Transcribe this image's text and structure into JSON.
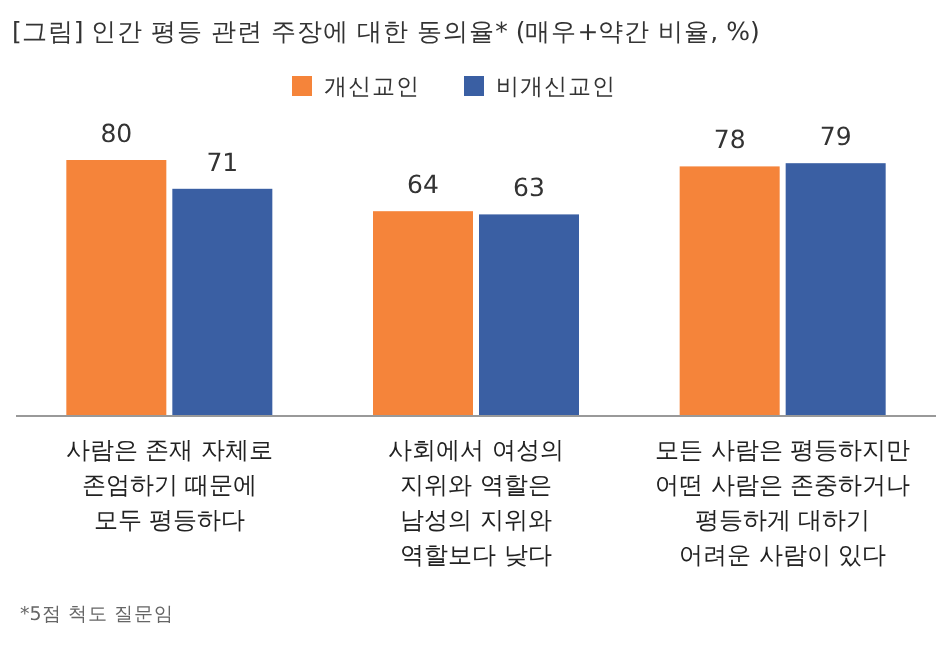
{
  "chart_data": {
    "type": "bar",
    "title": "[그림] 인간 평등 관련 주장에 대한 동의율* (매우+약간 비율, %)",
    "categories": [
      "사람은 존재 자체로\n존엄하기 때문에\n모두 평등하다",
      "사회에서 여성의\n지위와 역할은\n남성의 지위와\n역할보다 낮다",
      "모든 사람은 평등하지만\n어떤 사람은 존중하거나\n평등하게 대하기\n어려운 사람이 있다"
    ],
    "series": [
      {
        "name": "개신교인",
        "color": "#f5843a",
        "values": [
          80,
          64,
          78
        ]
      },
      {
        "name": "비개신교인",
        "color": "#3a5fa3",
        "values": [
          71,
          63,
          79
        ]
      }
    ],
    "data_labels": true,
    "legend": "top",
    "annotations": [
      "*5점 척도 질문임"
    ]
  }
}
